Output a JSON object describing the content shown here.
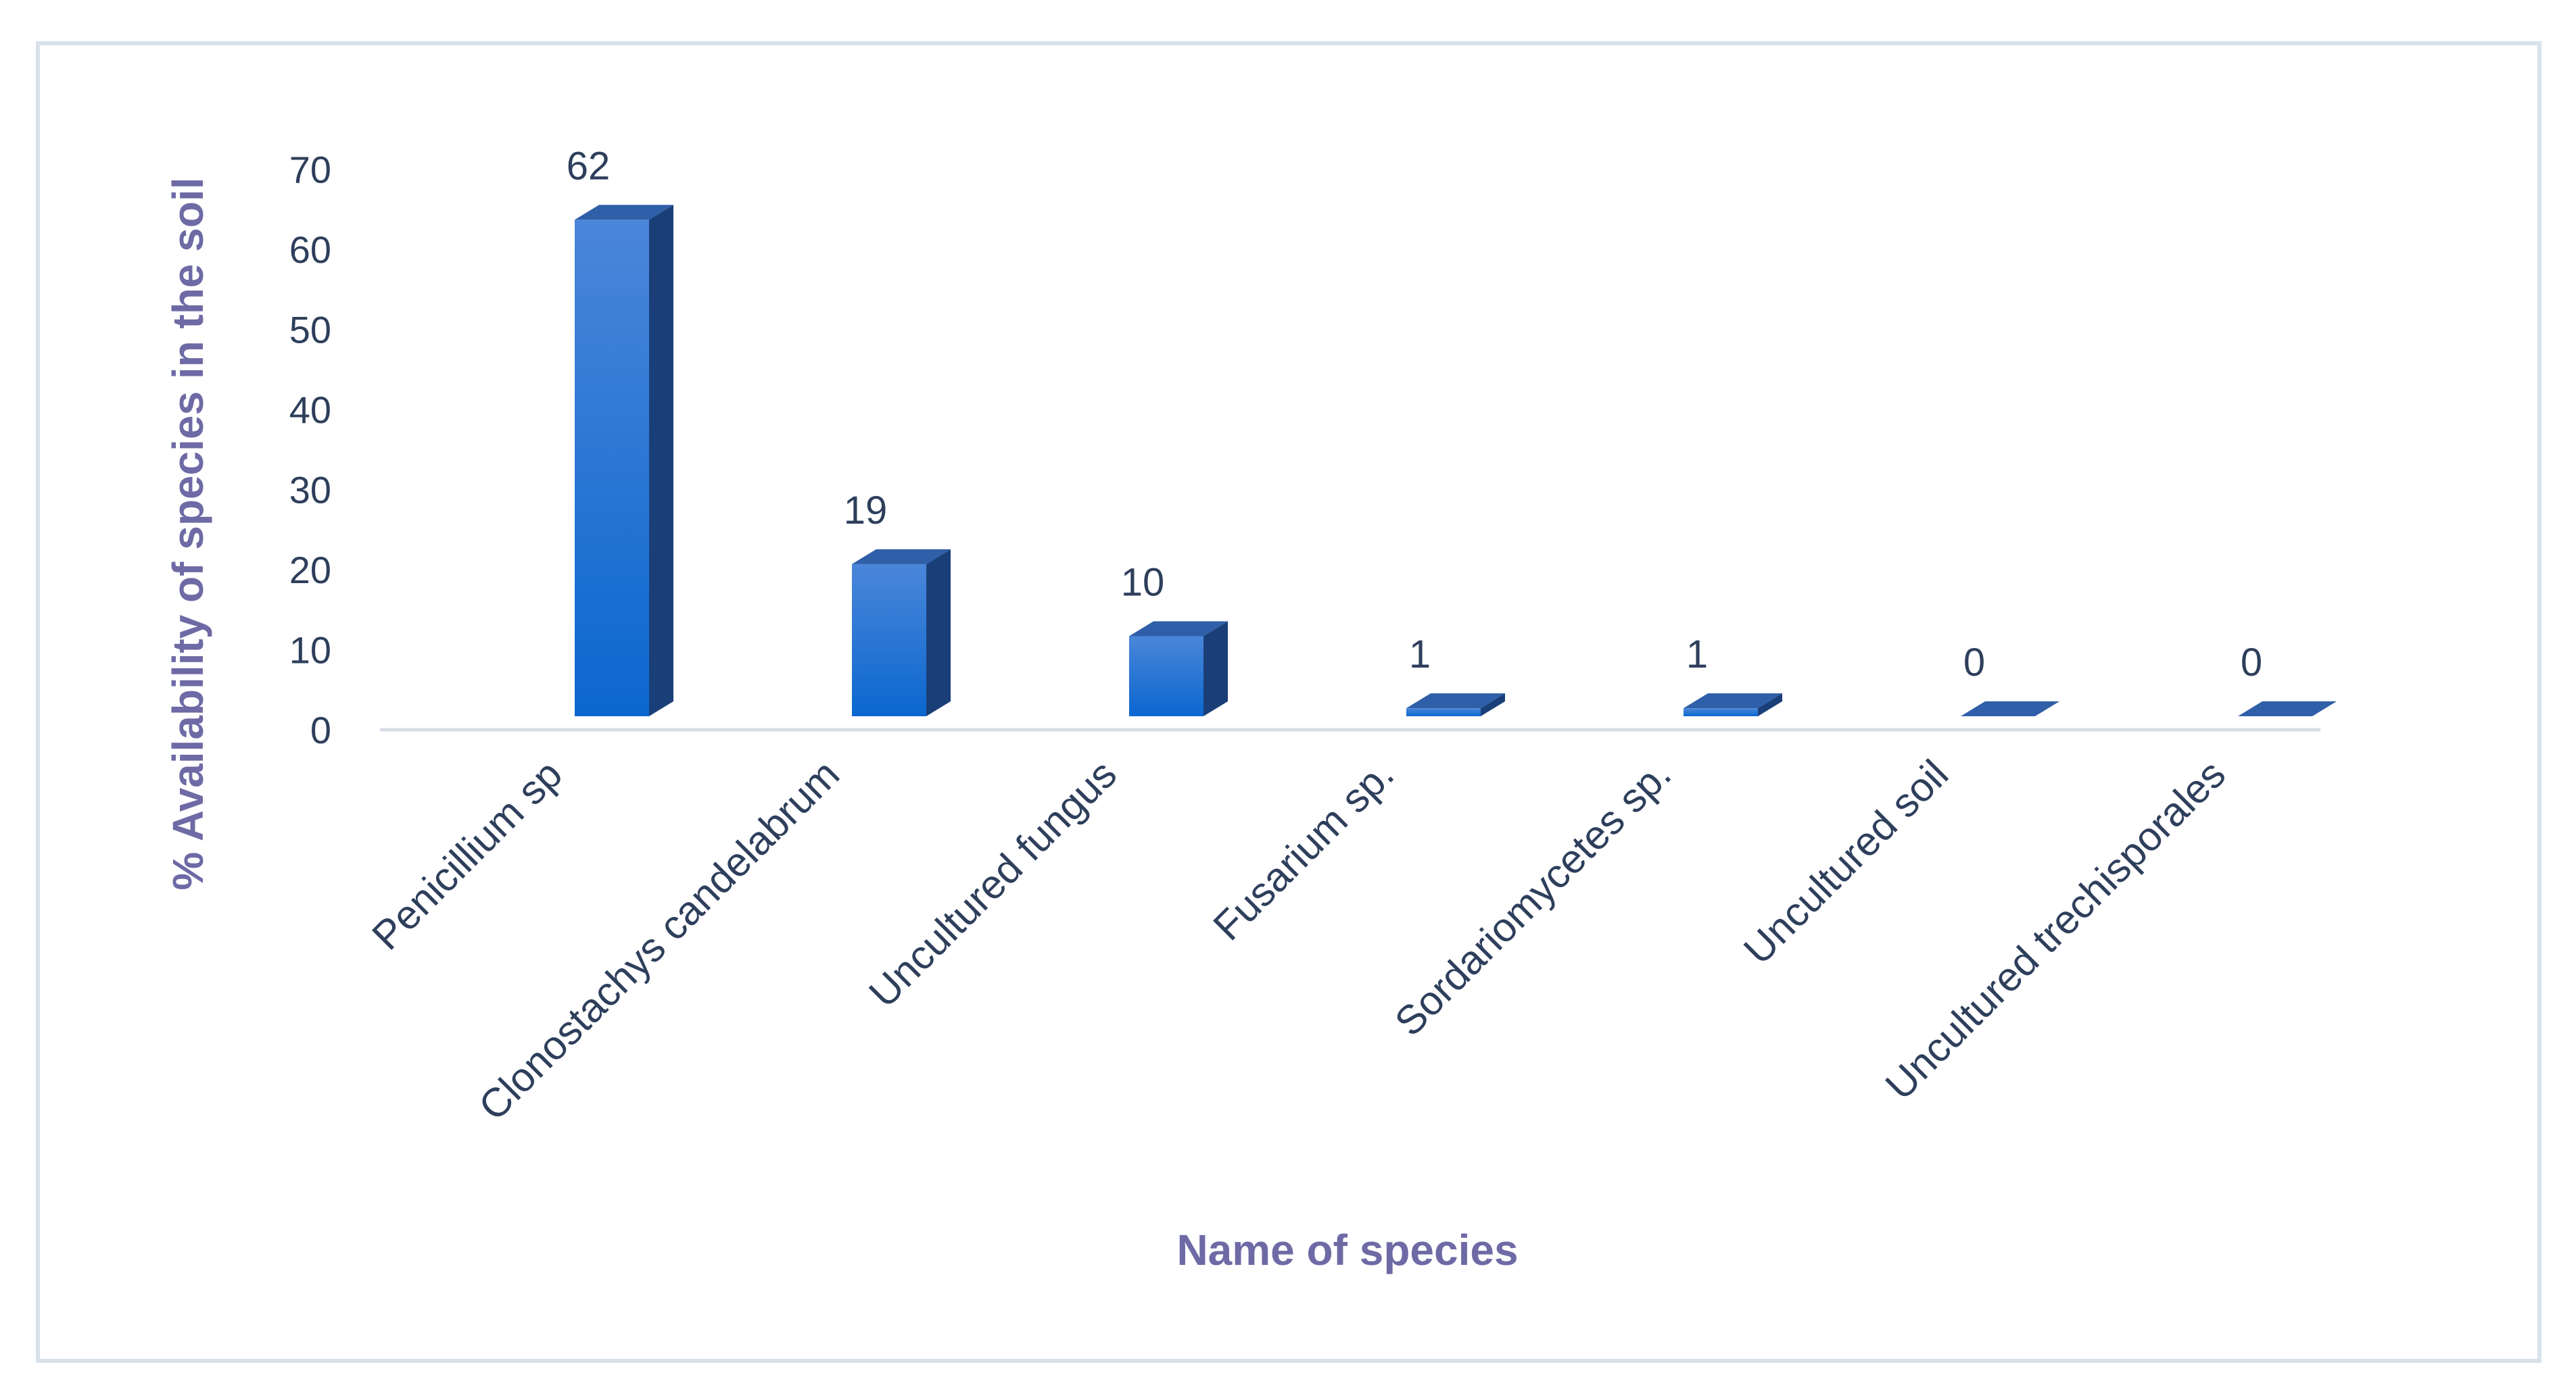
{
  "chart_data": {
    "type": "bar",
    "style": "3d-column",
    "categories": [
      "Penicillium sp",
      "Clonostachys candelabrum",
      "Uncultured fungus",
      "Fusarium sp.",
      "Sordariomycetes sp.",
      "Uncultured soil",
      "Uncultured trechisporales"
    ],
    "values": [
      62,
      19,
      10,
      1,
      1,
      0,
      0
    ],
    "data_labels": [
      "62",
      "19",
      "10",
      "1",
      "1",
      "0",
      "0"
    ],
    "title": "",
    "xlabel": "Name of species",
    "ylabel": "% Availability of species in the soil",
    "ylim": [
      0,
      70
    ],
    "yticks": [
      0,
      10,
      20,
      30,
      40,
      50,
      60,
      70
    ],
    "grid": false,
    "legend": "none"
  },
  "colors": {
    "bar_front_top": "#4a86d9",
    "bar_front_bottom": "#0b67cf",
    "bar_side": "#1a3f78",
    "bar_top": "#2f5fa8",
    "axis_line": "#d9dde6",
    "axis_title": "#6e6aa5",
    "text": "#2e3f5c",
    "border": "#d9e2ea"
  }
}
